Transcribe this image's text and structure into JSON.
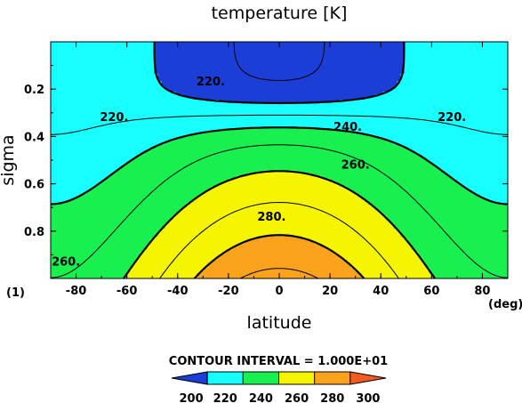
{
  "chart_data": {
    "type": "heatmap",
    "title": "temperature [K]",
    "xlabel": "latitude",
    "ylabel": "sigma",
    "x_unit": "(deg)",
    "y_unit": "(1)",
    "xlim": [
      -90,
      90
    ],
    "ylim": [
      0,
      1
    ],
    "y_inverted": true,
    "xticks": [
      "-80",
      "-60",
      "-40",
      "-20",
      "0",
      "20",
      "40",
      "60",
      "80"
    ],
    "yticks": [
      "0.2",
      "0.4",
      "0.6",
      "0.8"
    ],
    "contour_interval_text": "CONTOUR INTERVAL = 1.000E+01",
    "levels": [
      200,
      210,
      220,
      230,
      240,
      250,
      260,
      270,
      280,
      290,
      300
    ],
    "contour_labels": [
      {
        "text": "220.",
        "lat": -65,
        "sigma": 0.32
      },
      {
        "text": "220.",
        "lat": -27,
        "sigma": 0.17
      },
      {
        "text": "220.",
        "lat": 68,
        "sigma": 0.32
      },
      {
        "text": "240.",
        "lat": 27,
        "sigma": 0.36
      },
      {
        "text": "260.",
        "lat": 30,
        "sigma": 0.52
      },
      {
        "text": "280.",
        "lat": -3,
        "sigma": 0.74
      },
      {
        "text": "260.",
        "lat": -84,
        "sigma": 0.93
      }
    ],
    "colorbar": {
      "ticks": [
        "200",
        "220",
        "240",
        "260",
        "280",
        "300"
      ],
      "colors": [
        "#1b3fd6",
        "#18ffff",
        "#18f050",
        "#f6f500",
        "#fba31c",
        "#f55a20"
      ]
    },
    "grid": false
  }
}
